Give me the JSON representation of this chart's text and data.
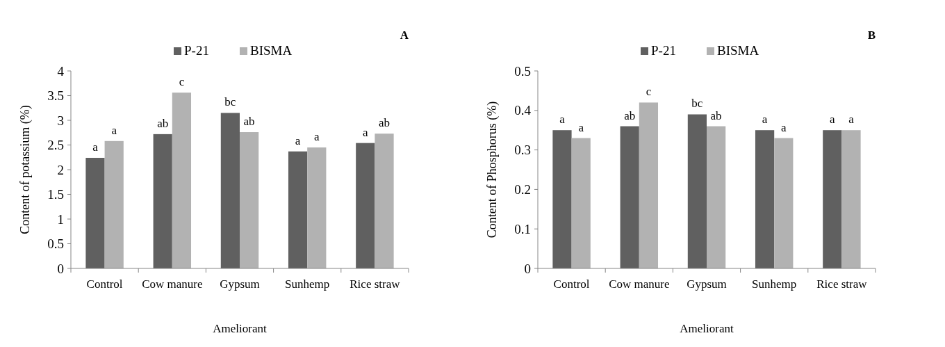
{
  "chart_data": [
    {
      "type": "bar",
      "title": "A",
      "xlabel": "Ameliorant",
      "ylabel": "Content of potassium (%)",
      "categories": [
        "Control",
        "Cow manure",
        "Gypsum",
        "Sunhemp",
        "Rice straw"
      ],
      "series": [
        {
          "name": "P-21",
          "color": "#606060",
          "values": [
            2.24,
            2.72,
            3.15,
            2.37,
            2.54
          ],
          "value_labels": [
            "a",
            "ab",
            "bc",
            "a",
            "a"
          ]
        },
        {
          "name": "BISMA",
          "color": "#b2b2b2",
          "values": [
            2.58,
            3.56,
            2.76,
            2.45,
            2.73
          ],
          "value_labels": [
            "a",
            "c",
            "ab",
            "a",
            "ab"
          ]
        }
      ],
      "ylim": [
        0,
        4
      ],
      "yticks": [
        0,
        {
          "value": 0.5,
          "label": "0.5"
        },
        1,
        {
          "value": 1.5,
          "label": "1.5"
        },
        2,
        {
          "value": 2.5,
          "label": "2.5"
        },
        3,
        {
          "value": 3.5,
          "label": "3.5"
        },
        4
      ],
      "legend": "top",
      "grid": false
    },
    {
      "type": "bar",
      "title": "B",
      "xlabel": "Ameliorant",
      "ylabel": "Content of  Phosphorus (%)",
      "categories": [
        "Control",
        "Cow manure",
        "Gypsum",
        "Sunhemp",
        "Rice straw"
      ],
      "series": [
        {
          "name": "P-21",
          "color": "#606060",
          "values": [
            0.35,
            0.36,
            0.39,
            0.35,
            0.35
          ],
          "value_labels": [
            "a",
            "ab",
            "bc",
            "a",
            "a"
          ]
        },
        {
          "name": "BISMA",
          "color": "#b2b2b2",
          "values": [
            0.33,
            0.42,
            0.36,
            0.33,
            0.35
          ],
          "value_labels": [
            "a",
            "c",
            "ab",
            "a",
            "a"
          ]
        }
      ],
      "ylim": [
        0,
        0.5
      ],
      "yticks": [
        0,
        {
          "value": 0.1,
          "label": "0.1"
        },
        {
          "value": 0.2,
          "label": "0.2"
        },
        {
          "value": 0.3,
          "label": "0.3"
        },
        {
          "value": 0.4,
          "label": "0.4"
        },
        {
          "value": 0.5,
          "label": "0.5"
        }
      ],
      "legend": "top",
      "grid": false
    }
  ]
}
